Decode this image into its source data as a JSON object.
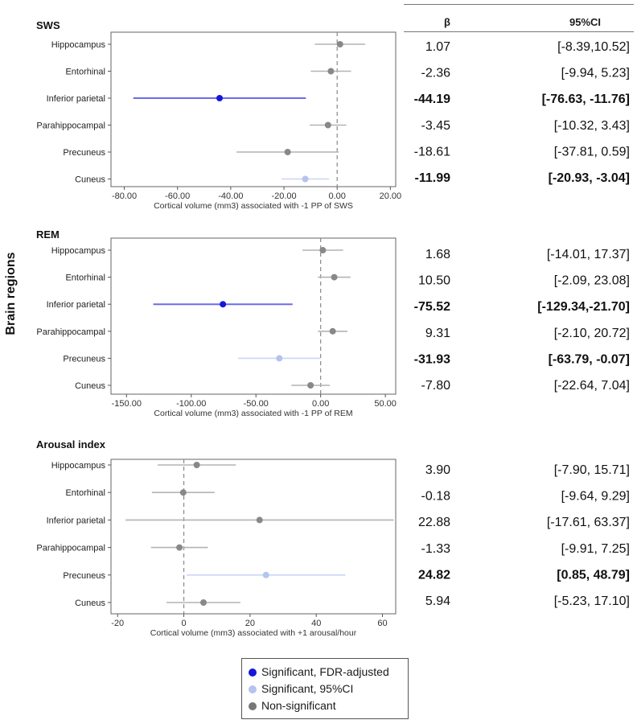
{
  "header": {
    "beta_label": "β",
    "ci_label": "95%CI"
  },
  "y_axis_title": "Brain regions",
  "colors": {
    "fdr": "#1717d9",
    "ci95": "#b4c3ef",
    "nonsig": "#888888",
    "fdr_line": "#6b6bea",
    "ci95_line": "#c9d6f5",
    "nonsig_line": "#b3b3b3"
  },
  "legend": [
    {
      "label": "Significant, FDR-adjusted",
      "color": "#1717d9"
    },
    {
      "label": "Significant, 95%CI",
      "color": "#b4c3ef"
    },
    {
      "label": "Non-significant",
      "color": "#777777"
    }
  ],
  "chart_data": [
    {
      "type": "forest",
      "title": "SWS",
      "xlabel": "Cortical volume (mm3) associated with -1 PP of SWS",
      "xlim": [
        -85,
        22
      ],
      "xticks": [
        -80,
        -60,
        -40,
        -20,
        0,
        20
      ],
      "xtick_labels": [
        "-80.00",
        "-60.00",
        "-40.00",
        "-20.00",
        "0.00",
        "20.00"
      ],
      "rows": [
        {
          "label": "Hippocampus",
          "beta": 1.07,
          "lo": -8.39,
          "hi": 10.52,
          "beta_text": "1.07",
          "ci_text": "[-8.39,10.52]",
          "sig": "ns"
        },
        {
          "label": "Entorhinal",
          "beta": -2.36,
          "lo": -9.94,
          "hi": 5.23,
          "beta_text": "-2.36",
          "ci_text": "[-9.94, 5.23]",
          "sig": "ns"
        },
        {
          "label": "Inferior parietal",
          "beta": -44.19,
          "lo": -76.63,
          "hi": -11.76,
          "beta_text": "-44.19",
          "ci_text": "[-76.63, -11.76]",
          "sig": "fdr"
        },
        {
          "label": "Parahippocampal",
          "beta": -3.45,
          "lo": -10.32,
          "hi": 3.43,
          "beta_text": "-3.45",
          "ci_text": "[-10.32, 3.43]",
          "sig": "ns"
        },
        {
          "label": "Precuneus",
          "beta": -18.61,
          "lo": -37.81,
          "hi": 0.59,
          "beta_text": "-18.61",
          "ci_text": "[-37.81, 0.59]",
          "sig": "ns"
        },
        {
          "label": "Cuneus",
          "beta": -11.99,
          "lo": -20.93,
          "hi": -3.04,
          "beta_text": "-11.99",
          "ci_text": "[-20.93, -3.04]",
          "sig": "ci"
        }
      ]
    },
    {
      "type": "forest",
      "title": "REM",
      "xlabel": "Cortical volume (mm3) associated with -1 PP of REM",
      "xlim": [
        -162,
        58
      ],
      "xticks": [
        -150,
        -100,
        -50,
        0,
        50
      ],
      "xtick_labels": [
        "-150.00",
        "-100.00",
        "-50.00",
        "0.00",
        "50.00"
      ],
      "rows": [
        {
          "label": "Hippocampus",
          "beta": 1.68,
          "lo": -14.01,
          "hi": 17.37,
          "beta_text": "1.68",
          "ci_text": "[-14.01, 17.37]",
          "sig": "ns"
        },
        {
          "label": "Entorhinal",
          "beta": 10.5,
          "lo": -2.09,
          "hi": 23.08,
          "beta_text": "10.50",
          "ci_text": "[-2.09, 23.08]",
          "sig": "ns"
        },
        {
          "label": "Inferior parietal",
          "beta": -75.52,
          "lo": -129.34,
          "hi": -21.7,
          "beta_text": "-75.52",
          "ci_text": "[-129.34,-21.70]",
          "sig": "fdr"
        },
        {
          "label": "Parahippocampal",
          "beta": 9.31,
          "lo": -2.1,
          "hi": 20.72,
          "beta_text": "9.31",
          "ci_text": "[-2.10, 20.72]",
          "sig": "ns"
        },
        {
          "label": "Precuneus",
          "beta": -31.93,
          "lo": -63.79,
          "hi": -0.07,
          "beta_text": "-31.93",
          "ci_text": "[-63.79, -0.07]",
          "sig": "ci"
        },
        {
          "label": "Cuneus",
          "beta": -7.8,
          "lo": -22.64,
          "hi": 7.04,
          "beta_text": "-7.80",
          "ci_text": "[-22.64, 7.04]",
          "sig": "ns"
        }
      ]
    },
    {
      "type": "forest",
      "title": "Arousal index",
      "xlabel": "Cortical volume (mm3) associated with +1 arousal/hour",
      "xlim": [
        -22,
        64
      ],
      "xticks": [
        -20,
        0,
        20,
        40,
        60
      ],
      "xtick_labels": [
        "-20",
        "0",
        "20",
        "40",
        "60"
      ],
      "rows": [
        {
          "label": "Hippocampus",
          "beta": 3.9,
          "lo": -7.9,
          "hi": 15.71,
          "beta_text": "3.90",
          "ci_text": "[-7.90, 15.71]",
          "sig": "ns"
        },
        {
          "label": "Entorhinal",
          "beta": -0.18,
          "lo": -9.64,
          "hi": 9.29,
          "beta_text": "-0.18",
          "ci_text": "[-9.64, 9.29]",
          "sig": "ns"
        },
        {
          "label": "Inferior parietal",
          "beta": 22.88,
          "lo": -17.61,
          "hi": 63.37,
          "beta_text": "22.88",
          "ci_text": "[-17.61, 63.37]",
          "sig": "ns"
        },
        {
          "label": "Parahippocampal",
          "beta": -1.33,
          "lo": -9.91,
          "hi": 7.25,
          "beta_text": "-1.33",
          "ci_text": "[-9.91, 7.25]",
          "sig": "ns"
        },
        {
          "label": "Precuneus",
          "beta": 24.82,
          "lo": 0.85,
          "hi": 48.79,
          "beta_text": "24.82",
          "ci_text": "[0.85, 48.79]",
          "sig": "ci"
        },
        {
          "label": "Cuneus",
          "beta": 5.94,
          "lo": -5.23,
          "hi": 17.1,
          "beta_text": "5.94",
          "ci_text": "[-5.23, 17.10]",
          "sig": "ns"
        }
      ]
    }
  ]
}
